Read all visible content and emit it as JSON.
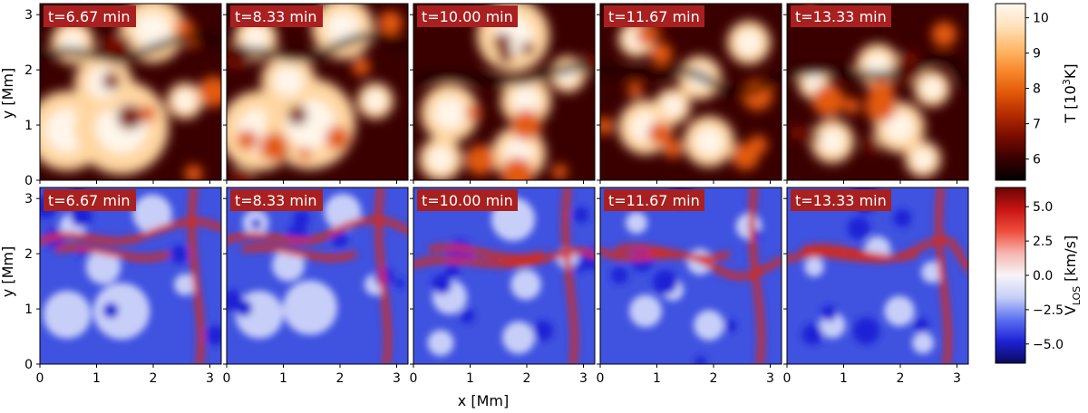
{
  "figure": {
    "x_axis_label": "x [Mm]",
    "y_axis_label": "y [Mm]",
    "time_labels": [
      "t=6.67 min",
      "t=8.33 min",
      "t=10.00 min",
      "t=11.67 min",
      "t=13.33 min"
    ]
  },
  "chart_data": [
    {
      "type": "heatmap",
      "quantity": "temperature",
      "colorbar_label_main": "T [10",
      "colorbar_label_sup": "3",
      "colorbar_label_end": "K]",
      "colorbar_ticks": [
        "6",
        "7",
        "8",
        "9",
        "10"
      ],
      "colorbar_range": [
        5.4,
        10.4
      ],
      "colormap": [
        "#000000",
        "#3a0000",
        "#7a0c00",
        "#b52d02",
        "#e35a0a",
        "#f88a2f",
        "#ffbb6e",
        "#ffe2bd",
        "#fff9f0"
      ],
      "xlim": [
        0,
        3.2
      ],
      "ylim": [
        0,
        3.2
      ],
      "x_ticks": [
        "0",
        "1",
        "2",
        "3"
      ],
      "y_ticks": [
        "0",
        "1",
        "2",
        "3"
      ],
      "panels": [
        {
          "time": "t=6.67 min"
        },
        {
          "time": "t=8.33 min"
        },
        {
          "time": "t=10.00 min"
        },
        {
          "time": "t=11.67 min"
        },
        {
          "time": "t=13.33 min"
        }
      ]
    },
    {
      "type": "heatmap",
      "quantity": "line-of-sight velocity",
      "colorbar_label_main": "V",
      "colorbar_label_sub": "LOS",
      "colorbar_label_end": " [km/s]",
      "colorbar_ticks": [
        "5.0",
        "2.5",
        "0.0",
        "−2.5",
        "−5.0"
      ],
      "colorbar_tick_values": [
        5.0,
        2.5,
        0.0,
        -2.5,
        -5.0
      ],
      "colorbar_range": [
        -6.4,
        6.4
      ],
      "colormap": [
        "#0a0a5e",
        "#1e22d6",
        "#5d72f0",
        "#c7cff8",
        "#f7f5f7",
        "#f6b6b0",
        "#ef4e3c",
        "#c81414",
        "#6a0505"
      ],
      "xlim": [
        0,
        3.2
      ],
      "ylim": [
        0,
        3.2
      ],
      "x_ticks": [
        "0",
        "1",
        "2",
        "3"
      ],
      "y_ticks": [
        "0",
        "1",
        "2",
        "3"
      ],
      "panels": [
        {
          "time": "t=6.67 min"
        },
        {
          "time": "t=8.33 min"
        },
        {
          "time": "t=10.00 min"
        },
        {
          "time": "t=11.67 min"
        },
        {
          "time": "t=13.33 min"
        }
      ]
    }
  ],
  "colors": {
    "time_badge": "#a82020",
    "time_badge_text": "#ffffff"
  }
}
